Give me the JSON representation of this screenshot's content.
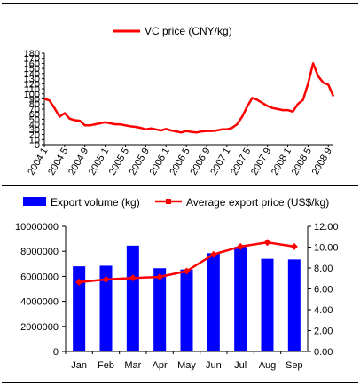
{
  "chart_data": [
    {
      "type": "line",
      "legend": [
        {
          "label": "VC price (CNY/kg)",
          "color": "#ff0000"
        }
      ],
      "legend_position": "top",
      "ylim": [
        0,
        180
      ],
      "yticks": [
        "0",
        "10",
        "20",
        "30",
        "40",
        "50",
        "60",
        "70",
        "80",
        "90",
        "100",
        "110",
        "120",
        "130",
        "140",
        "150",
        "160",
        "170",
        "180"
      ],
      "xticks": [
        "2004 1",
        "2004 5",
        "2004 9",
        "2005 1",
        "2005 5",
        "2005 9",
        "2006 1",
        "2006 5",
        "2006 9",
        "2007 1",
        "2007 5",
        "2007 9",
        "2008 1",
        "2008 5",
        "2008 9"
      ],
      "x": [
        "2004-01",
        "2004-02",
        "2004-03",
        "2004-04",
        "2004-05",
        "2004-06",
        "2004-07",
        "2004-08",
        "2004-09",
        "2004-10",
        "2004-11",
        "2004-12",
        "2005-01",
        "2005-02",
        "2005-03",
        "2005-04",
        "2005-05",
        "2005-06",
        "2005-07",
        "2005-08",
        "2005-09",
        "2005-10",
        "2005-11",
        "2005-12",
        "2006-01",
        "2006-02",
        "2006-03",
        "2006-04",
        "2006-05",
        "2006-06",
        "2006-07",
        "2006-08",
        "2006-09",
        "2006-10",
        "2006-11",
        "2006-12",
        "2007-01",
        "2007-02",
        "2007-03",
        "2007-04",
        "2007-05",
        "2007-06",
        "2007-07",
        "2007-08",
        "2007-09",
        "2007-10",
        "2007-11",
        "2007-12",
        "2008-01",
        "2008-02",
        "2008-03",
        "2008-04",
        "2008-05",
        "2008-06",
        "2008-07",
        "2008-08",
        "2008-09",
        "2008-10"
      ],
      "series": [
        {
          "name": "VC price (CNY/kg)",
          "color": "#ff0000",
          "values": [
            90,
            87,
            72,
            55,
            62,
            51,
            48,
            47,
            38,
            38,
            40,
            42,
            44,
            42,
            40,
            40,
            38,
            36,
            35,
            33,
            30,
            32,
            30,
            28,
            31,
            28,
            26,
            24,
            27,
            25,
            24,
            26,
            27,
            27,
            28,
            30,
            30,
            33,
            40,
            55,
            75,
            92,
            88,
            82,
            76,
            72,
            70,
            68,
            68,
            65,
            80,
            88,
            120,
            160,
            135,
            122,
            118,
            95
          ]
        }
      ]
    },
    {
      "type": "bar",
      "categories": [
        "Jan",
        "Feb",
        "Mar",
        "Apr",
        "May",
        "Jun",
        "Jul",
        "Aug",
        "Sep"
      ],
      "legend_position": "top",
      "ylim": [
        0,
        10000000
      ],
      "yticks": [
        "0",
        "2000000",
        "4000000",
        "6000000",
        "8000000",
        "10000000"
      ],
      "y2lim": [
        0,
        12
      ],
      "y2ticks": [
        "0.00",
        "2.00",
        "4.00",
        "6.00",
        "8.00",
        "10.00",
        "12.00"
      ],
      "series": [
        {
          "name": "Export volume (kg)",
          "color": "#0000ff",
          "axis": "left",
          "values": [
            6800000,
            6850000,
            8450000,
            6650000,
            6550000,
            7850000,
            8350000,
            7400000,
            7350000
          ]
        },
        {
          "name": "Average export price (US$/kg)",
          "color": "#ff0000",
          "axis": "right",
          "line": true,
          "values": [
            6.65,
            6.9,
            7.05,
            7.15,
            7.7,
            9.3,
            10.05,
            10.45,
            10.05
          ]
        }
      ]
    }
  ]
}
